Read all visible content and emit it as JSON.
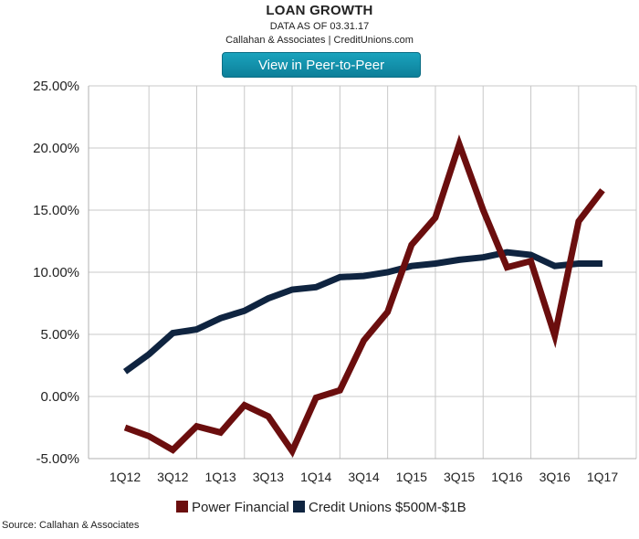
{
  "header": {
    "title": "LOAN GROWTH",
    "subtitle": "DATA AS OF 03.31.17",
    "credit": "Callahan & Associates | CreditUnions.com",
    "button_label": "View in Peer-to-Peer"
  },
  "footer": {
    "source": "Source: Callahan & Associates"
  },
  "chart_data": {
    "type": "line",
    "title": "LOAN GROWTH",
    "x": [
      "1Q12",
      "2Q12",
      "3Q12",
      "4Q12",
      "1Q13",
      "2Q13",
      "3Q13",
      "4Q13",
      "1Q14",
      "2Q14",
      "3Q14",
      "4Q14",
      "1Q15",
      "2Q15",
      "3Q15",
      "4Q15",
      "1Q16",
      "2Q16",
      "3Q16",
      "4Q16",
      "1Q17"
    ],
    "x_tick_labels": [
      "1Q12",
      "3Q12",
      "1Q13",
      "3Q13",
      "1Q14",
      "3Q14",
      "1Q15",
      "3Q15",
      "1Q16",
      "3Q16",
      "1Q17"
    ],
    "y_tick_labels": [
      "25.00%",
      "20.00%",
      "15.00%",
      "10.00%",
      "5.00%",
      "0.00%",
      "-5.00%"
    ],
    "ylim": [
      -5,
      25
    ],
    "grid": true,
    "legend_position": "bottom",
    "series": [
      {
        "name": "Power Financial",
        "color": "#6b0e0e",
        "values": [
          -2.5,
          -3.2,
          -4.3,
          -2.4,
          -2.9,
          -0.7,
          -1.6,
          -4.4,
          -0.1,
          0.5,
          4.5,
          6.8,
          12.2,
          14.4,
          20.3,
          15.0,
          10.4,
          10.9,
          4.9,
          14.1,
          16.6
        ]
      },
      {
        "name": "Credit Unions $500M-$1B",
        "color": "#0f2440",
        "values": [
          2.0,
          3.4,
          5.1,
          5.4,
          6.3,
          6.9,
          7.9,
          8.6,
          8.8,
          9.6,
          9.7,
          10.0,
          10.5,
          10.7,
          11.0,
          11.2,
          11.6,
          11.4,
          10.5,
          10.7,
          10.7
        ]
      }
    ]
  }
}
